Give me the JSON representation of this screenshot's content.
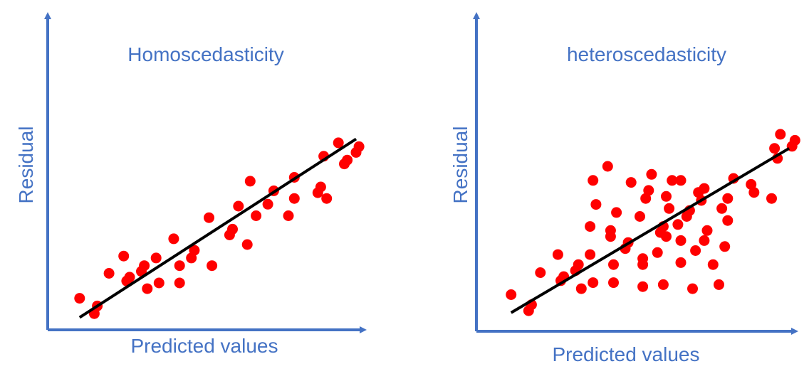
{
  "colors": {
    "axis": "#4472c4",
    "text": "#4472c4",
    "points": "#ff0000",
    "trend": "#000000"
  },
  "chart_data": [
    {
      "type": "scatter",
      "title": "Homoscedasticity",
      "xlabel": "Predicted values",
      "ylabel": "Residual",
      "grid": false,
      "axis_ticks": false,
      "xlim": [
        0,
        100
      ],
      "ylim": [
        0,
        100
      ],
      "trend_line": {
        "x": [
          6,
          100
        ],
        "y": [
          2,
          95
        ]
      },
      "points": [
        {
          "x": 6,
          "y": 12
        },
        {
          "x": 11,
          "y": 4
        },
        {
          "x": 12,
          "y": 8
        },
        {
          "x": 16,
          "y": 25
        },
        {
          "x": 21,
          "y": 34
        },
        {
          "x": 22,
          "y": 21
        },
        {
          "x": 23,
          "y": 23
        },
        {
          "x": 27,
          "y": 26
        },
        {
          "x": 28,
          "y": 29
        },
        {
          "x": 29,
          "y": 17
        },
        {
          "x": 32,
          "y": 33
        },
        {
          "x": 33,
          "y": 20
        },
        {
          "x": 38,
          "y": 43
        },
        {
          "x": 40,
          "y": 29
        },
        {
          "x": 40,
          "y": 20
        },
        {
          "x": 44,
          "y": 33
        },
        {
          "x": 45,
          "y": 37
        },
        {
          "x": 51,
          "y": 29
        },
        {
          "x": 50,
          "y": 54
        },
        {
          "x": 57,
          "y": 45
        },
        {
          "x": 58,
          "y": 48
        },
        {
          "x": 60,
          "y": 60
        },
        {
          "x": 63,
          "y": 40
        },
        {
          "x": 64,
          "y": 73
        },
        {
          "x": 66,
          "y": 55
        },
        {
          "x": 70,
          "y": 61
        },
        {
          "x": 72,
          "y": 68
        },
        {
          "x": 77,
          "y": 55
        },
        {
          "x": 79,
          "y": 64
        },
        {
          "x": 79,
          "y": 75
        },
        {
          "x": 87,
          "y": 67
        },
        {
          "x": 88,
          "y": 70
        },
        {
          "x": 90,
          "y": 64
        },
        {
          "x": 89,
          "y": 86
        },
        {
          "x": 94,
          "y": 93
        },
        {
          "x": 96,
          "y": 82
        },
        {
          "x": 97,
          "y": 84
        },
        {
          "x": 100,
          "y": 88
        },
        {
          "x": 101,
          "y": 91
        }
      ]
    },
    {
      "type": "scatter",
      "title": "heteroscedasticity",
      "xlabel": "Predicted values",
      "ylabel": "Residual",
      "grid": false,
      "axis_ticks": false,
      "xlim": [
        0,
        100
      ],
      "ylim": [
        0,
        100
      ],
      "trend_line": {
        "x": [
          6,
          101
        ],
        "y": [
          5,
          87
        ]
      },
      "points": [
        {
          "x": 6,
          "y": 14
        },
        {
          "x": 12,
          "y": 6
        },
        {
          "x": 13,
          "y": 9
        },
        {
          "x": 16,
          "y": 25
        },
        {
          "x": 22,
          "y": 34
        },
        {
          "x": 23,
          "y": 21
        },
        {
          "x": 24,
          "y": 23
        },
        {
          "x": 28,
          "y": 26
        },
        {
          "x": 29,
          "y": 29
        },
        {
          "x": 30,
          "y": 17
        },
        {
          "x": 33,
          "y": 48
        },
        {
          "x": 34,
          "y": 20
        },
        {
          "x": 33,
          "y": 34
        },
        {
          "x": 34,
          "y": 71
        },
        {
          "x": 35,
          "y": 59
        },
        {
          "x": 39,
          "y": 78
        },
        {
          "x": 40,
          "y": 43
        },
        {
          "x": 40,
          "y": 46
        },
        {
          "x": 41,
          "y": 29
        },
        {
          "x": 41,
          "y": 20
        },
        {
          "x": 42,
          "y": 55
        },
        {
          "x": 45,
          "y": 37
        },
        {
          "x": 46,
          "y": 40
        },
        {
          "x": 47,
          "y": 70
        },
        {
          "x": 50,
          "y": 53
        },
        {
          "x": 51,
          "y": 32
        },
        {
          "x": 51,
          "y": 29
        },
        {
          "x": 51,
          "y": 18
        },
        {
          "x": 52,
          "y": 62
        },
        {
          "x": 53,
          "y": 66
        },
        {
          "x": 54,
          "y": 74
        },
        {
          "x": 56,
          "y": 35
        },
        {
          "x": 57,
          "y": 45
        },
        {
          "x": 58,
          "y": 48
        },
        {
          "x": 58,
          "y": 19
        },
        {
          "x": 59,
          "y": 43
        },
        {
          "x": 59,
          "y": 63
        },
        {
          "x": 60,
          "y": 57
        },
        {
          "x": 61,
          "y": 71
        },
        {
          "x": 63,
          "y": 49
        },
        {
          "x": 64,
          "y": 41
        },
        {
          "x": 64,
          "y": 30
        },
        {
          "x": 64,
          "y": 71
        },
        {
          "x": 66,
          "y": 53
        },
        {
          "x": 67,
          "y": 56
        },
        {
          "x": 68,
          "y": 17
        },
        {
          "x": 69,
          "y": 36
        },
        {
          "x": 70,
          "y": 65
        },
        {
          "x": 71,
          "y": 61
        },
        {
          "x": 72,
          "y": 67
        },
        {
          "x": 72,
          "y": 41
        },
        {
          "x": 73,
          "y": 46
        },
        {
          "x": 75,
          "y": 29
        },
        {
          "x": 77,
          "y": 19
        },
        {
          "x": 78,
          "y": 57
        },
        {
          "x": 79,
          "y": 38
        },
        {
          "x": 80,
          "y": 51
        },
        {
          "x": 80,
          "y": 62
        },
        {
          "x": 82,
          "y": 72
        },
        {
          "x": 88,
          "y": 69
        },
        {
          "x": 89,
          "y": 65
        },
        {
          "x": 95,
          "y": 62
        },
        {
          "x": 96,
          "y": 87
        },
        {
          "x": 97,
          "y": 82
        },
        {
          "x": 98,
          "y": 94
        },
        {
          "x": 102,
          "y": 88
        },
        {
          "x": 103,
          "y": 91
        }
      ]
    }
  ]
}
